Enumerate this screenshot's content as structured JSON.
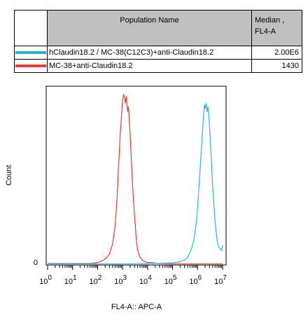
{
  "legend": {
    "header_population": "Population Name",
    "header_median_line1": "Median ,",
    "header_median_line2": "FL4-A",
    "rows": [
      {
        "name": "hClaudin18.2 / MC-38(C12C3)+anti-Claudin18.2",
        "median": "2.00E6",
        "color": "#29b6d6"
      },
      {
        "name": "MC-38+anti-Claudin18.2",
        "median": "1430",
        "color": "#e83a3a"
      }
    ]
  },
  "chart_data": {
    "type": "line",
    "xlabel": "FL4-A:: APC-A",
    "ylabel": "Count",
    "xscale": "log",
    "xlim": [
      1,
      10000000
    ],
    "ylim": [
      0,
      100
    ],
    "y_ticks": [
      "0"
    ],
    "x_tick_labels": [
      {
        "base": "10",
        "exp": "0"
      },
      {
        "base": "10",
        "exp": "1"
      },
      {
        "base": "10",
        "exp": "2"
      },
      {
        "base": "10",
        "exp": "3"
      },
      {
        "base": "10",
        "exp": "4"
      },
      {
        "base": "10",
        "exp": "5"
      },
      {
        "base": "10",
        "exp": "6"
      },
      {
        "base": "10",
        "exp": "7"
      }
    ],
    "series": [
      {
        "name": "MC-38+anti-Claudin18.2",
        "color": "#e83a3a",
        "x": [
          1,
          10,
          50,
          100,
          150,
          200,
          300,
          400,
          500,
          600,
          700,
          800,
          900,
          1000,
          1100,
          1200,
          1300,
          1400,
          1500,
          1600,
          1700,
          1800,
          2000,
          2200,
          2500,
          3000,
          3500,
          4000,
          5000,
          6000,
          8000,
          10000,
          15000,
          20000,
          30000,
          50000,
          100000,
          1000000,
          10000000
        ],
        "y": [
          0.5,
          0.5,
          0.5,
          1,
          2,
          3,
          6,
          12,
          22,
          38,
          58,
          75,
          85,
          95,
          98,
          96,
          93,
          97,
          92,
          88,
          91,
          86,
          75,
          62,
          45,
          28,
          15,
          8,
          4,
          2.5,
          1.5,
          1,
          1,
          0.7,
          0.5,
          0.4,
          0.3,
          0.3,
          0.3
        ]
      },
      {
        "name": "hClaudin18.2 / MC-38(C12C3)+anti-Claudin18.2",
        "color": "#29b6d6",
        "x": [
          1,
          10,
          100,
          1000,
          10000,
          100000,
          200000,
          300000,
          400000,
          500000,
          600000,
          700000,
          800000,
          900000,
          1000000,
          1200000,
          1500000,
          1700000,
          1900000,
          2000000,
          2200000,
          2400000,
          2600000,
          2800000,
          3000000,
          3500000,
          4000000,
          5000000,
          6000000,
          7000000,
          8000000,
          9000000,
          10000000
        ],
        "y": [
          0.3,
          0.3,
          0.3,
          0.3,
          0.4,
          0.8,
          1.5,
          2.5,
          4,
          7,
          10,
          14,
          19,
          25,
          33,
          50,
          72,
          85,
          92,
          90,
          93,
          88,
          91,
          86,
          80,
          62,
          45,
          25,
          14,
          10,
          9,
          8,
          11
        ]
      }
    ]
  }
}
